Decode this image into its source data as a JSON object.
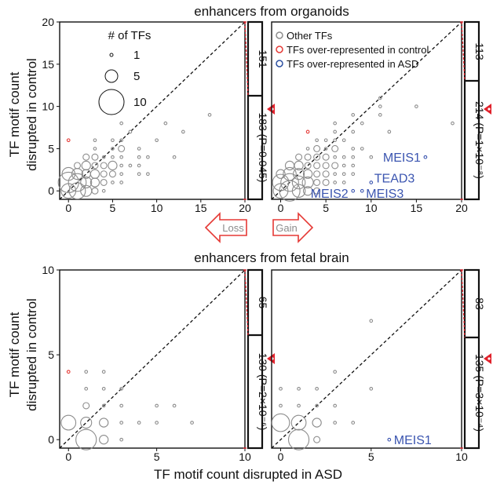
{
  "titles": {
    "top": "enhancers from organoids",
    "bottom": "enhancers from fetal brain"
  },
  "axis_labels": {
    "y_line1": "TF motif count",
    "y_line2": "disrupted in control",
    "x": "TF motif count disrupted in ASD"
  },
  "arrows": {
    "loss": "Loss",
    "gain": "Gain"
  },
  "legend_size": {
    "title": "# of TFs",
    "items": [
      "1",
      "5",
      "10"
    ]
  },
  "legend_color": {
    "items": [
      {
        "label": "Other TFs",
        "color": "#8c8c8c"
      },
      {
        "label": "TFs over-represented in control",
        "color": "#e53935"
      },
      {
        "label": "TFs over-represented in ASD",
        "color": "#2c4fa0"
      }
    ]
  },
  "colors": {
    "other": "#8c8c8c",
    "control": "#e53935",
    "asd": "#3b55b0",
    "marker": "#e0202a"
  },
  "chart_data": [
    {
      "id": "organoid-loss",
      "type": "scatter",
      "xlim": [
        -1,
        20
      ],
      "ylim": [
        -1,
        20
      ],
      "xticks": [
        "0",
        "5",
        "10",
        "15",
        "20"
      ],
      "yticks": [
        "0",
        "5",
        "10",
        "15",
        "20"
      ],
      "diagonal": true,
      "side_bar": {
        "upper": "151",
        "lower": "183 (P=0.045)"
      },
      "points": [
        {
          "x": 0,
          "y": 0,
          "n": 6
        },
        {
          "x": 1,
          "y": 0,
          "n": 7
        },
        {
          "x": 2,
          "y": 0,
          "n": 4
        },
        {
          "x": 3,
          "y": 0,
          "n": 2
        },
        {
          "x": 4,
          "y": 0,
          "n": 1
        },
        {
          "x": 0,
          "y": 1,
          "n": 10
        },
        {
          "x": 1,
          "y": 1,
          "n": 8
        },
        {
          "x": 2,
          "y": 1,
          "n": 4
        },
        {
          "x": 3,
          "y": 1,
          "n": 3
        },
        {
          "x": 4,
          "y": 1,
          "n": 2
        },
        {
          "x": 5,
          "y": 1,
          "n": 1
        },
        {
          "x": 6,
          "y": 1,
          "n": 1
        },
        {
          "x": 0,
          "y": 2,
          "n": 5
        },
        {
          "x": 1,
          "y": 2,
          "n": 4
        },
        {
          "x": 2,
          "y": 2,
          "n": 3
        },
        {
          "x": 3,
          "y": 2,
          "n": 3
        },
        {
          "x": 4,
          "y": 2,
          "n": 2
        },
        {
          "x": 5,
          "y": 2,
          "n": 2
        },
        {
          "x": 6,
          "y": 2,
          "n": 1
        },
        {
          "x": 8,
          "y": 2,
          "n": 1
        },
        {
          "x": 9,
          "y": 2,
          "n": 1
        },
        {
          "x": 1,
          "y": 3,
          "n": 2
        },
        {
          "x": 2,
          "y": 3,
          "n": 3
        },
        {
          "x": 3,
          "y": 3,
          "n": 2
        },
        {
          "x": 4,
          "y": 3,
          "n": 2
        },
        {
          "x": 5,
          "y": 3,
          "n": 3
        },
        {
          "x": 6,
          "y": 3,
          "n": 1
        },
        {
          "x": 7,
          "y": 3,
          "n": 1
        },
        {
          "x": 8,
          "y": 3,
          "n": 1
        },
        {
          "x": 2,
          "y": 4,
          "n": 2
        },
        {
          "x": 3,
          "y": 4,
          "n": 2
        },
        {
          "x": 4,
          "y": 4,
          "n": 1
        },
        {
          "x": 5,
          "y": 4,
          "n": 1
        },
        {
          "x": 6,
          "y": 4,
          "n": 1
        },
        {
          "x": 8,
          "y": 4,
          "n": 1
        },
        {
          "x": 9,
          "y": 4,
          "n": 1
        },
        {
          "x": 12,
          "y": 4,
          "n": 1
        },
        {
          "x": 3,
          "y": 5,
          "n": 1
        },
        {
          "x": 5,
          "y": 5,
          "n": 1
        },
        {
          "x": 6,
          "y": 5,
          "n": 2
        },
        {
          "x": 8,
          "y": 5,
          "n": 1
        },
        {
          "x": 0,
          "y": 6,
          "n": 1,
          "c": "control"
        },
        {
          "x": 3,
          "y": 6,
          "n": 1
        },
        {
          "x": 5,
          "y": 6,
          "n": 1
        },
        {
          "x": 6,
          "y": 6,
          "n": 1
        },
        {
          "x": 10,
          "y": 6,
          "n": 1
        },
        {
          "x": 7,
          "y": 7,
          "n": 1
        },
        {
          "x": 13,
          "y": 7,
          "n": 1
        },
        {
          "x": 6,
          "y": 8,
          "n": 1
        },
        {
          "x": 11,
          "y": 8,
          "n": 1
        },
        {
          "x": 16,
          "y": 9,
          "n": 1
        }
      ]
    },
    {
      "id": "organoid-gain",
      "type": "scatter",
      "xlim": [
        -1,
        20
      ],
      "ylim": [
        -1,
        20
      ],
      "xticks": [
        "0",
        "5",
        "10",
        "15",
        "20"
      ],
      "yticks": [
        "0",
        "5",
        "10",
        "15",
        "20"
      ],
      "diagonal": true,
      "side_bar": {
        "upper": "113",
        "lower": "214 (P=1×10⁻⁸)"
      },
      "labels": [
        {
          "text": "MEIS1",
          "x": 16,
          "y": 4
        },
        {
          "text": "TEAD3",
          "x": 10,
          "y": 1
        },
        {
          "text": "MEIS3",
          "x": 9,
          "y": 0
        },
        {
          "text": "MEIS2",
          "x": 8,
          "y": 0
        }
      ],
      "points": [
        {
          "x": 0,
          "y": 0,
          "n": 6
        },
        {
          "x": 1,
          "y": 0,
          "n": 10
        },
        {
          "x": 2,
          "y": 0,
          "n": 5
        },
        {
          "x": 3,
          "y": 0,
          "n": 3
        },
        {
          "x": 4,
          "y": 0,
          "n": 2
        },
        {
          "x": 0,
          "y": 1,
          "n": 7
        },
        {
          "x": 1,
          "y": 1,
          "n": 8
        },
        {
          "x": 2,
          "y": 1,
          "n": 5
        },
        {
          "x": 3,
          "y": 1,
          "n": 4
        },
        {
          "x": 4,
          "y": 1,
          "n": 2
        },
        {
          "x": 5,
          "y": 1,
          "n": 2
        },
        {
          "x": 6,
          "y": 1,
          "n": 1
        },
        {
          "x": 7,
          "y": 1,
          "n": 1
        },
        {
          "x": 0,
          "y": 2,
          "n": 3
        },
        {
          "x": 1,
          "y": 2,
          "n": 5
        },
        {
          "x": 2,
          "y": 2,
          "n": 4
        },
        {
          "x": 3,
          "y": 2,
          "n": 3
        },
        {
          "x": 4,
          "y": 2,
          "n": 2
        },
        {
          "x": 5,
          "y": 2,
          "n": 2
        },
        {
          "x": 6,
          "y": 2,
          "n": 1
        },
        {
          "x": 7,
          "y": 2,
          "n": 1
        },
        {
          "x": 8,
          "y": 2,
          "n": 1
        },
        {
          "x": 1,
          "y": 3,
          "n": 3
        },
        {
          "x": 2,
          "y": 3,
          "n": 3
        },
        {
          "x": 3,
          "y": 3,
          "n": 2
        },
        {
          "x": 4,
          "y": 3,
          "n": 2
        },
        {
          "x": 5,
          "y": 3,
          "n": 2
        },
        {
          "x": 6,
          "y": 3,
          "n": 2
        },
        {
          "x": 7,
          "y": 3,
          "n": 1
        },
        {
          "x": 8,
          "y": 3,
          "n": 1
        },
        {
          "x": 2,
          "y": 4,
          "n": 2
        },
        {
          "x": 3,
          "y": 4,
          "n": 2
        },
        {
          "x": 4,
          "y": 4,
          "n": 2
        },
        {
          "x": 5,
          "y": 4,
          "n": 2
        },
        {
          "x": 6,
          "y": 4,
          "n": 1
        },
        {
          "x": 7,
          "y": 4,
          "n": 1
        },
        {
          "x": 8,
          "y": 4,
          "n": 1
        },
        {
          "x": 10,
          "y": 4,
          "n": 1
        },
        {
          "x": 3,
          "y": 5,
          "n": 1
        },
        {
          "x": 4,
          "y": 5,
          "n": 2
        },
        {
          "x": 5,
          "y": 5,
          "n": 1
        },
        {
          "x": 6,
          "y": 5,
          "n": 2
        },
        {
          "x": 8,
          "y": 5,
          "n": 1
        },
        {
          "x": 9,
          "y": 5,
          "n": 1
        },
        {
          "x": 4,
          "y": 6,
          "n": 1
        },
        {
          "x": 5,
          "y": 6,
          "n": 1
        },
        {
          "x": 6,
          "y": 6,
          "n": 1
        },
        {
          "x": 7,
          "y": 6,
          "n": 1
        },
        {
          "x": 3,
          "y": 7,
          "n": 1,
          "c": "control"
        },
        {
          "x": 6,
          "y": 7,
          "n": 1
        },
        {
          "x": 8,
          "y": 7,
          "n": 1
        },
        {
          "x": 12,
          "y": 7,
          "n": 1
        },
        {
          "x": 6,
          "y": 8,
          "n": 1
        },
        {
          "x": 9,
          "y": 8,
          "n": 1
        },
        {
          "x": 8,
          "y": 9,
          "n": 1
        },
        {
          "x": 11,
          "y": 9,
          "n": 1
        },
        {
          "x": 11,
          "y": 10,
          "n": 1
        },
        {
          "x": 15,
          "y": 10,
          "n": 1
        },
        {
          "x": 19,
          "y": 8,
          "n": 1
        },
        {
          "x": 11,
          "y": 11,
          "n": 1
        },
        {
          "x": 16,
          "y": 4,
          "n": 1,
          "c": "asd"
        },
        {
          "x": 10,
          "y": 1,
          "n": 1,
          "c": "asd"
        },
        {
          "x": 9,
          "y": 0,
          "n": 1,
          "c": "asd"
        },
        {
          "x": 8,
          "y": 0,
          "n": 1,
          "c": "asd"
        }
      ]
    },
    {
      "id": "fetal-loss",
      "type": "scatter",
      "xlim": [
        -0.5,
        10
      ],
      "ylim": [
        -0.5,
        10
      ],
      "xticks": [
        "0",
        "5",
        "10"
      ],
      "yticks": [
        "0",
        "5",
        "10"
      ],
      "diagonal": true,
      "side_bar": {
        "upper": "65",
        "lower": "130 (P=2×10⁻⁶)"
      },
      "points": [
        {
          "x": 0,
          "y": 1,
          "n": 6
        },
        {
          "x": 1,
          "y": 0,
          "n": 10
        },
        {
          "x": 1,
          "y": 1,
          "n": 4
        },
        {
          "x": 2,
          "y": 0,
          "n": 3
        },
        {
          "x": 2,
          "y": 1,
          "n": 3
        },
        {
          "x": 3,
          "y": 0,
          "n": 1
        },
        {
          "x": 3,
          "y": 1,
          "n": 1
        },
        {
          "x": 4,
          "y": 1,
          "n": 1
        },
        {
          "x": 5,
          "y": 1,
          "n": 1
        },
        {
          "x": 7,
          "y": 1,
          "n": 1
        },
        {
          "x": 1,
          "y": 2,
          "n": 2
        },
        {
          "x": 2,
          "y": 2,
          "n": 1
        },
        {
          "x": 3,
          "y": 2,
          "n": 1
        },
        {
          "x": 5,
          "y": 2,
          "n": 1
        },
        {
          "x": 6,
          "y": 2,
          "n": 1
        },
        {
          "x": 1,
          "y": 3,
          "n": 1
        },
        {
          "x": 2,
          "y": 3,
          "n": 1
        },
        {
          "x": 3,
          "y": 3,
          "n": 1
        },
        {
          "x": 1,
          "y": 4,
          "n": 1
        },
        {
          "x": 2,
          "y": 4,
          "n": 1
        },
        {
          "x": 0,
          "y": 4,
          "n": 1,
          "c": "control"
        }
      ]
    },
    {
      "id": "fetal-gain",
      "type": "scatter",
      "xlim": [
        -0.5,
        10
      ],
      "ylim": [
        -0.5,
        10
      ],
      "xticks": [
        "0",
        "5",
        "10"
      ],
      "yticks": [
        "0",
        "5",
        "10"
      ],
      "diagonal": true,
      "side_bar": {
        "upper": "83",
        "lower": "135 (P=3×10⁻⁴)"
      },
      "labels": [
        {
          "text": "MEIS1",
          "x": 6,
          "y": 0
        }
      ],
      "points": [
        {
          "x": 0,
          "y": 1,
          "n": 8
        },
        {
          "x": 1,
          "y": 0,
          "n": 10
        },
        {
          "x": 1,
          "y": 1,
          "n": 6
        },
        {
          "x": 2,
          "y": 0,
          "n": 2
        },
        {
          "x": 2,
          "y": 1,
          "n": 3
        },
        {
          "x": 3,
          "y": 1,
          "n": 1
        },
        {
          "x": 4,
          "y": 1,
          "n": 1
        },
        {
          "x": 0,
          "y": 2,
          "n": 1
        },
        {
          "x": 1,
          "y": 2,
          "n": 1
        },
        {
          "x": 2,
          "y": 2,
          "n": 1
        },
        {
          "x": 3,
          "y": 2,
          "n": 1
        },
        {
          "x": 0,
          "y": 3,
          "n": 1
        },
        {
          "x": 1,
          "y": 3,
          "n": 1
        },
        {
          "x": 2,
          "y": 3,
          "n": 1
        },
        {
          "x": 5,
          "y": 3,
          "n": 1
        },
        {
          "x": 3,
          "y": 4,
          "n": 1
        },
        {
          "x": 5,
          "y": 7,
          "n": 1
        },
        {
          "x": 6,
          "y": 0,
          "n": 1,
          "c": "asd"
        }
      ]
    }
  ]
}
